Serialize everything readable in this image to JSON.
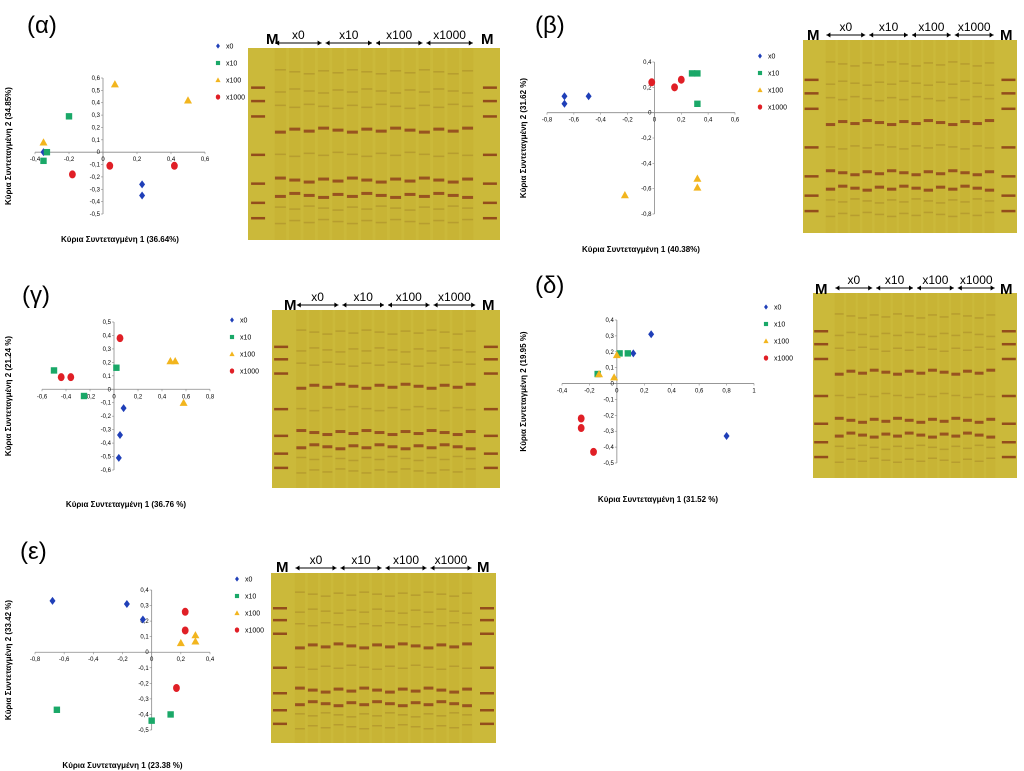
{
  "marker_label": "M",
  "series_colors": {
    "x0": "#1f3fb8",
    "x10": "#1aa868",
    "x100": "#f2b51e",
    "x1000": "#e01f26"
  },
  "chart_data": [
    {
      "panel": "(α)",
      "type": "scatter",
      "xlabel": "Κύρια Συντεταγμένη 1 (36.64%)",
      "ylabel": "Κύρια Συντεταγμένη 2 (34.85%)",
      "xlim": [
        -0.4,
        0.6
      ],
      "ylim": [
        -0.5,
        0.6
      ],
      "xticks": [
        "-0,4",
        "-0,2",
        "0",
        "0,2",
        "0,4",
        "0,6"
      ],
      "yticks": [
        "-0,5",
        "-0,4",
        "-0,3",
        "-0,2",
        "-0,1",
        "0",
        "0,1",
        "0,2",
        "0,3",
        "0,4",
        "0,5",
        "0,6"
      ],
      "legend": [
        "x0",
        "x10",
        "x100",
        "x1000"
      ],
      "series": [
        {
          "name": "x0",
          "points": [
            [
              -0.35,
              0.0
            ],
            [
              0.23,
              -0.26
            ],
            [
              0.23,
              -0.35
            ]
          ]
        },
        {
          "name": "x10",
          "points": [
            [
              -0.33,
              0.0
            ],
            [
              -0.35,
              -0.07
            ],
            [
              -0.2,
              0.29
            ]
          ]
        },
        {
          "name": "x100",
          "points": [
            [
              -0.35,
              0.08
            ],
            [
              0.07,
              0.55
            ],
            [
              0.5,
              0.42
            ]
          ]
        },
        {
          "name": "x1000",
          "points": [
            [
              -0.18,
              -0.18
            ],
            [
              0.04,
              -0.11
            ],
            [
              0.42,
              -0.11
            ]
          ]
        }
      ],
      "gel_lanes": [
        "x0",
        "x10",
        "x100",
        "x1000"
      ]
    },
    {
      "panel": "(β)",
      "type": "scatter",
      "xlabel": "Κύρια Συντεταγμένη 1 (40.38%)",
      "ylabel": "Κύρια Συντεταγμένη 2 (31.62 %)",
      "xlim": [
        -0.8,
        0.6
      ],
      "ylim": [
        -0.8,
        0.4
      ],
      "xticks": [
        "-0,8",
        "-0,6",
        "-0,4",
        "-0,2",
        "0",
        "0,2",
        "0,4",
        "0,6"
      ],
      "yticks": [
        "-0,8",
        "-0,6",
        "-0,4",
        "-0,2",
        "0",
        "0,2",
        "0,4"
      ],
      "legend": [
        "x0",
        "x10",
        "x100",
        "x1000"
      ],
      "series": [
        {
          "name": "x0",
          "points": [
            [
              -0.67,
              0.13
            ],
            [
              -0.67,
              0.07
            ],
            [
              -0.49,
              0.13
            ]
          ]
        },
        {
          "name": "x10",
          "points": [
            [
              0.28,
              0.31
            ],
            [
              0.32,
              0.31
            ],
            [
              0.32,
              0.07
            ]
          ]
        },
        {
          "name": "x100",
          "points": [
            [
              -0.22,
              -0.65
            ],
            [
              0.32,
              -0.52
            ],
            [
              0.32,
              -0.59
            ]
          ]
        },
        {
          "name": "x1000",
          "points": [
            [
              -0.02,
              0.24
            ],
            [
              0.15,
              0.2
            ],
            [
              0.2,
              0.26
            ]
          ]
        }
      ],
      "gel_lanes": [
        "x0",
        "x10",
        "x100",
        "x1000"
      ]
    },
    {
      "panel": "(γ)",
      "type": "scatter",
      "xlabel": "Κύρια Συντεταγμένη 1 (36.76 %)",
      "ylabel": "Κύρια Συντεταγμένη 2 (21.24 %)",
      "xlim": [
        -0.6,
        0.8
      ],
      "ylim": [
        -0.6,
        0.5
      ],
      "xticks": [
        "-0,6",
        "-0,4",
        "-0,2",
        "0",
        "0,2",
        "0,4",
        "0,6",
        "0,8"
      ],
      "yticks": [
        "-0,6",
        "-0,5",
        "-0,4",
        "-0,3",
        "-0,2",
        "-0,1",
        "0",
        "0,1",
        "0,2",
        "0,3",
        "0,4",
        "0,5"
      ],
      "legend": [
        "x0",
        "x10",
        "x100",
        "x1000"
      ],
      "series": [
        {
          "name": "x0",
          "points": [
            [
              0.08,
              -0.14
            ],
            [
              0.05,
              -0.34
            ],
            [
              0.04,
              -0.51
            ]
          ]
        },
        {
          "name": "x10",
          "points": [
            [
              -0.5,
              0.14
            ],
            [
              -0.25,
              -0.05
            ],
            [
              0.02,
              0.16
            ]
          ]
        },
        {
          "name": "x100",
          "points": [
            [
              0.47,
              0.21
            ],
            [
              0.51,
              0.21
            ],
            [
              0.58,
              -0.1
            ]
          ]
        },
        {
          "name": "x1000",
          "points": [
            [
              -0.44,
              0.09
            ],
            [
              -0.36,
              0.09
            ],
            [
              0.05,
              0.38
            ]
          ]
        }
      ],
      "gel_lanes": [
        "x0",
        "x10",
        "x100",
        "x1000"
      ]
    },
    {
      "panel": "(δ)",
      "type": "scatter",
      "xlabel": "Κύρια Συντεταγμένη 1 (31.52 %)",
      "ylabel": "Κύρια Συντεταγμένη 2 (19.95 %)",
      "xlim": [
        -0.4,
        1.0
      ],
      "ylim": [
        -0.5,
        0.4
      ],
      "xticks": [
        "-0,4",
        "-0,2",
        "0",
        "0,2",
        "0,4",
        "0,6",
        "0,8",
        "1"
      ],
      "yticks": [
        "-0,5",
        "-0,4",
        "-0,3",
        "-0,2",
        "-0,1",
        "0",
        "0,1",
        "0,2",
        "0,3",
        "0,4"
      ],
      "legend": [
        "x0",
        "x10",
        "x100",
        "x1000"
      ],
      "series": [
        {
          "name": "x0",
          "points": [
            [
              0.25,
              0.31
            ],
            [
              0.12,
              0.19
            ],
            [
              0.8,
              -0.33
            ]
          ]
        },
        {
          "name": "x10",
          "points": [
            [
              0.02,
              0.19
            ],
            [
              0.08,
              0.19
            ],
            [
              -0.14,
              0.06
            ]
          ]
        },
        {
          "name": "x100",
          "points": [
            [
              -0.13,
              0.06
            ],
            [
              0.0,
              0.18
            ],
            [
              -0.02,
              0.04
            ]
          ]
        },
        {
          "name": "x1000",
          "points": [
            [
              -0.26,
              -0.22
            ],
            [
              -0.26,
              -0.28
            ],
            [
              -0.17,
              -0.43
            ]
          ]
        }
      ],
      "gel_lanes": [
        "x0",
        "x10",
        "x100",
        "x1000"
      ]
    },
    {
      "panel": "(ε)",
      "type": "scatter",
      "xlabel": "Κύρια Συντεταγμένη 1 (23.38 %)",
      "ylabel": "Κύρια Συντεταγμένη 2 (33.42 %)",
      "xlim": [
        -0.8,
        0.4
      ],
      "ylim": [
        -0.5,
        0.4
      ],
      "xticks": [
        "-0,8",
        "-0,6",
        "-0,4",
        "-0,2",
        "0",
        "0,2",
        "0,4"
      ],
      "yticks": [
        "-0,5",
        "-0,4",
        "-0,3",
        "-0,2",
        "-0,1",
        "0",
        "0,1",
        "0,2",
        "0,3",
        "0,4"
      ],
      "legend": [
        "x0",
        "x10",
        "x100",
        "x1000"
      ],
      "series": [
        {
          "name": "x0",
          "points": [
            [
              -0.68,
              0.33
            ],
            [
              -0.17,
              0.31
            ],
            [
              -0.06,
              0.21
            ]
          ]
        },
        {
          "name": "x10",
          "points": [
            [
              -0.65,
              -0.37
            ],
            [
              0.0,
              -0.44
            ],
            [
              0.13,
              -0.4
            ]
          ]
        },
        {
          "name": "x100",
          "points": [
            [
              0.2,
              0.06
            ],
            [
              0.3,
              0.11
            ],
            [
              0.3,
              0.07
            ]
          ]
        },
        {
          "name": "x1000",
          "points": [
            [
              0.23,
              0.26
            ],
            [
              0.23,
              0.14
            ],
            [
              0.17,
              -0.23
            ]
          ]
        }
      ],
      "gel_lanes": [
        "x0",
        "x10",
        "x100",
        "x1000"
      ]
    }
  ]
}
